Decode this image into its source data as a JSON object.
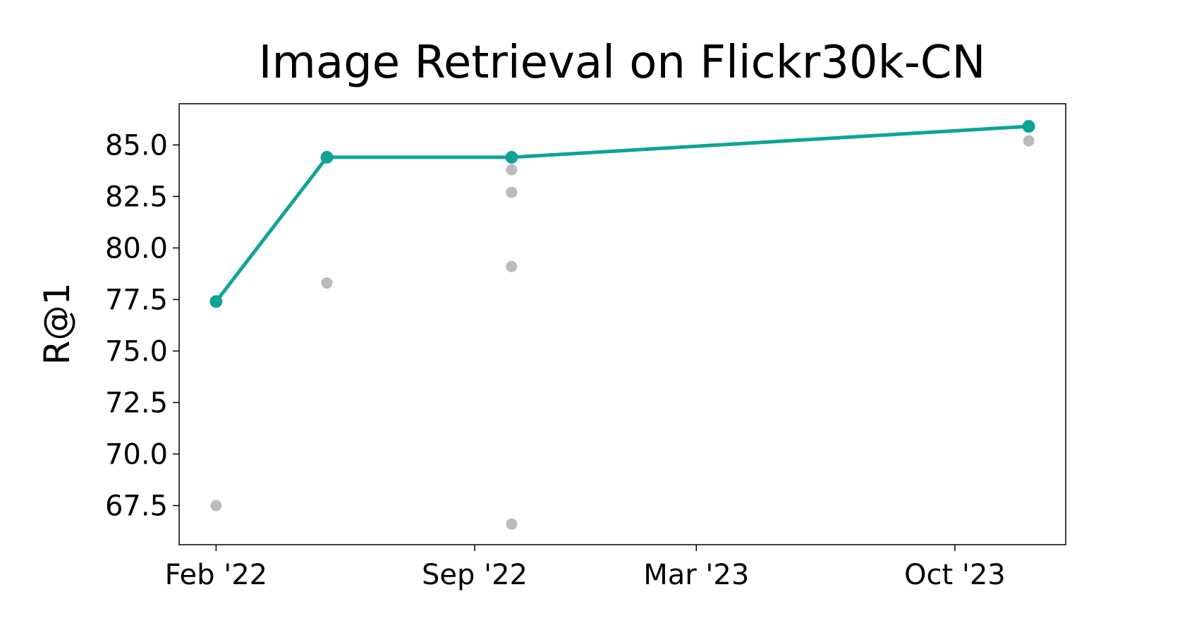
{
  "chart_data": {
    "type": "line",
    "title": "Image Retrieval on Flickr30k-CN",
    "y_label": "R@1",
    "xlim": [
      "2022-01",
      "2024-01"
    ],
    "xticks": [
      {
        "value": "2022-02",
        "label": "Feb '22"
      },
      {
        "value": "2022-09",
        "label": "Sep '22"
      },
      {
        "value": "2023-03",
        "label": "Mar '23"
      },
      {
        "value": "2023-10",
        "label": "Oct '23"
      }
    ],
    "ylim": [
      65.6,
      87.0
    ],
    "yticks": [
      {
        "value": 67.5,
        "label": "67.5"
      },
      {
        "value": 70,
        "label": "70.0"
      },
      {
        "value": 72.5,
        "label": "72.5"
      },
      {
        "value": 75,
        "label": "75.0"
      },
      {
        "value": 77.5,
        "label": "77.5"
      },
      {
        "value": 80,
        "label": "80.0"
      },
      {
        "value": 82.5,
        "label": "82.5"
      },
      {
        "value": 85,
        "label": "85.0"
      }
    ],
    "series": [
      {
        "type": "scatter",
        "color": "#bbbbbb",
        "x": [
          "2022-02",
          "2022-05",
          "2022-10",
          "2022-10",
          "2022-10",
          "2022-10",
          "2023-12"
        ],
        "values": [
          67.5,
          78.3,
          83.8,
          82.7,
          79.1,
          66.6,
          85.2
        ]
      },
      {
        "type": "line",
        "color": "#0fa396",
        "x": [
          "2022-02",
          "2022-05",
          "2022-10",
          "2023-12"
        ],
        "values": [
          77.4,
          84.4,
          84.4,
          85.9
        ]
      }
    ]
  }
}
